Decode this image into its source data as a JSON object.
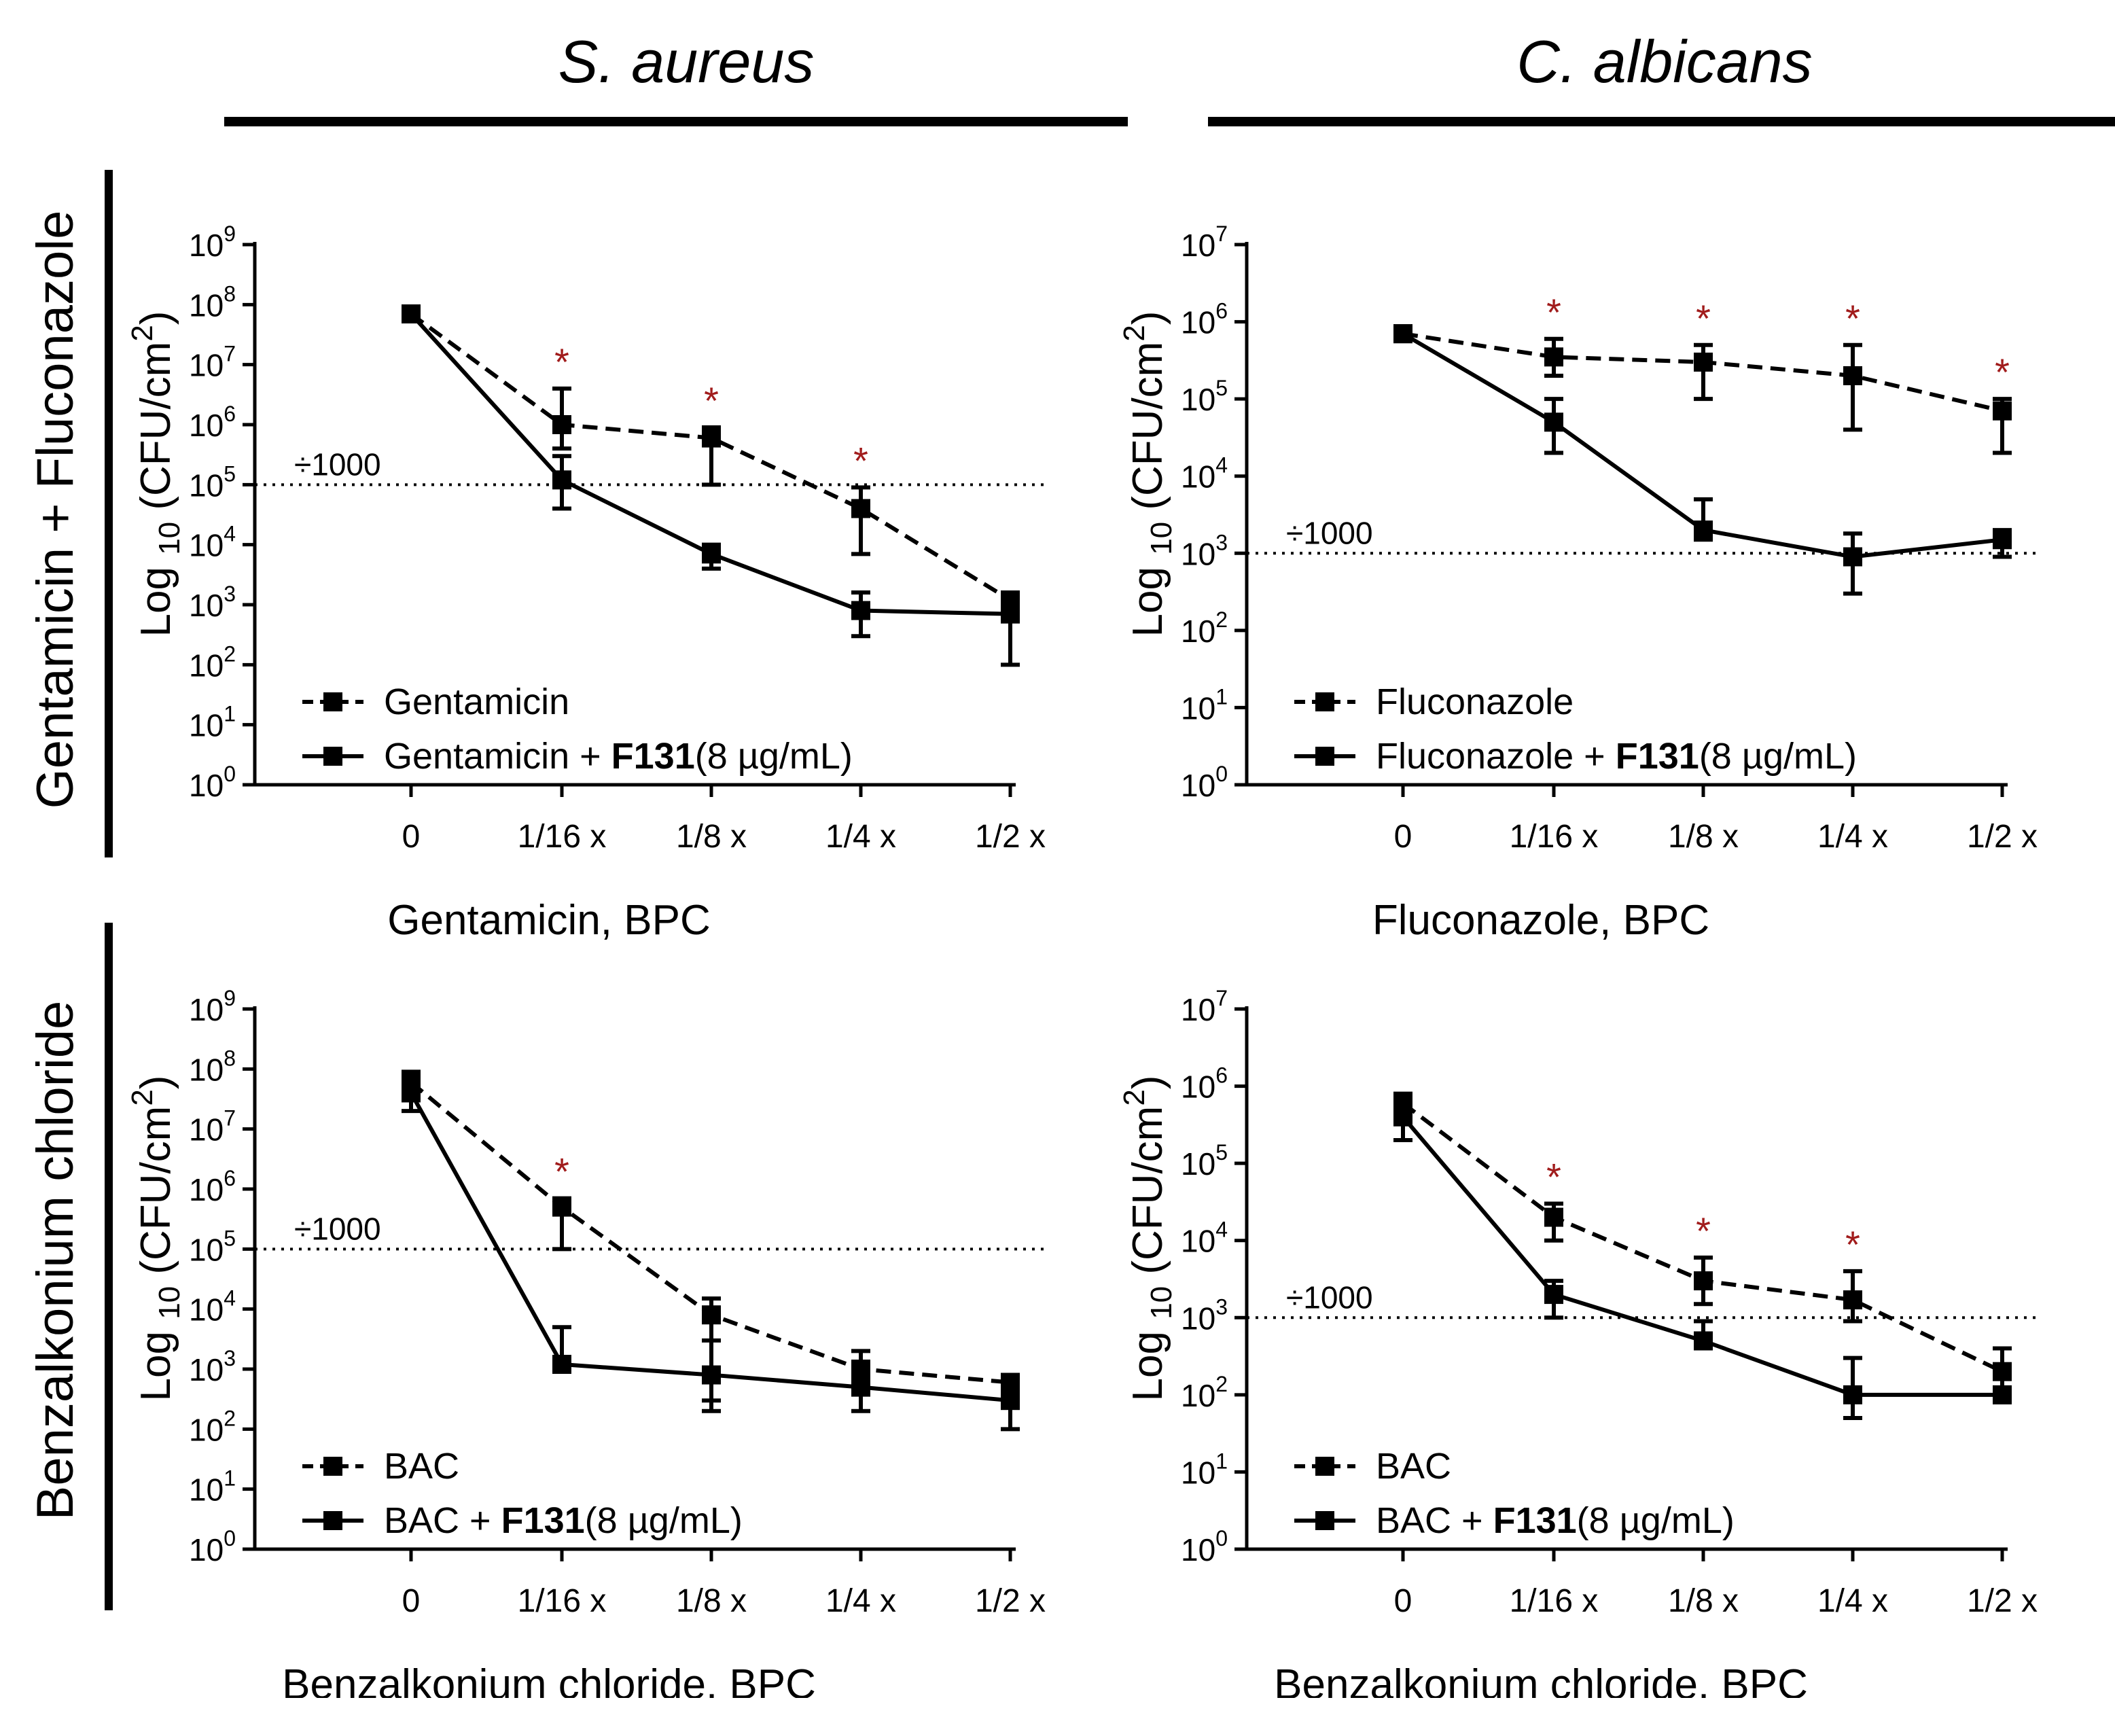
{
  "column_titles": [
    "S. aureus",
    "C. albicans"
  ],
  "row_labels": [
    "Gentamicin + Fluconazole",
    "Benzalkonium chloride"
  ],
  "colors": {
    "axis": "#000000",
    "asterisk": "#a11c1c",
    "threshold": "#000000"
  },
  "chart_data": [
    {
      "type": "line",
      "organism": "S. aureus",
      "xlabel": "Gentamicin, BPC",
      "ylabel_main": "Log",
      "ylabel_sub": "10",
      "ylabel_unit": "(CFU/cm",
      "ylabel_sup": "2",
      "ylabel_close": ")",
      "categories": [
        "0",
        "1/16 x",
        "1/8 x",
        "1/4 x",
        "1/2 x"
      ],
      "yscale": "log10",
      "ylim_exp": [
        0,
        9
      ],
      "threshold": {
        "value": 100000,
        "label": "÷1000"
      },
      "legend_position": "bottom-left",
      "series": [
        {
          "name": "Gentamicin",
          "style": "dashed",
          "values": [
            70000000,
            1000000,
            600000,
            40000,
            1200
          ],
          "err_low": [
            70000000,
            400000,
            100000,
            7000,
            900
          ],
          "err_high": [
            70000000,
            4000000,
            900000,
            90000,
            1500
          ]
        },
        {
          "name": "Gentamicin + ",
          "name_bold": "F131",
          "name_tail": "(8 µg/mL)",
          "style": "solid",
          "values": [
            70000000,
            120000,
            7000,
            800,
            700
          ],
          "err_low": [
            70000000,
            40000,
            4000,
            300,
            100
          ],
          "err_high": [
            70000000,
            300000,
            10000,
            1600,
            1500
          ]
        }
      ],
      "asterisks": [
        1,
        2,
        3
      ],
      "asterisk_symbol": "*"
    },
    {
      "type": "line",
      "organism": "C. albicans",
      "xlabel": "Fluconazole, BPC",
      "ylabel_main": "Log",
      "ylabel_sub": "10",
      "ylabel_unit": "(CFU/cm",
      "ylabel_sup": "2",
      "ylabel_close": ")",
      "categories": [
        "0",
        "1/16 x",
        "1/8 x",
        "1/4 x",
        "1/2 x"
      ],
      "yscale": "log10",
      "ylim_exp": [
        0,
        7
      ],
      "threshold": {
        "value": 1000,
        "label": "÷1000"
      },
      "legend_position": "bottom-left",
      "series": [
        {
          "name": "Fluconazole",
          "style": "dashed",
          "values": [
            700000,
            350000,
            300000,
            200000,
            70000
          ],
          "err_low": [
            700000,
            200000,
            100000,
            40000,
            20000
          ],
          "err_high": [
            700000,
            600000,
            500000,
            500000,
            100000
          ]
        },
        {
          "name": "Fluconazole + ",
          "name_bold": "F131",
          "name_tail": "(8 µg/mL)",
          "style": "solid",
          "values": [
            700000,
            50000,
            2000,
            900,
            1500
          ],
          "err_low": [
            700000,
            20000,
            1500,
            300,
            900
          ],
          "err_high": [
            700000,
            100000,
            5000,
            1800,
            2000
          ]
        }
      ],
      "asterisks": [
        1,
        2,
        3,
        4
      ],
      "asterisk_symbol": "*"
    },
    {
      "type": "line",
      "organism": "S. aureus",
      "xlabel": "Benzalkonium chloride, BPC",
      "ylabel_main": "Log",
      "ylabel_sub": "10",
      "ylabel_unit": "(CFU/cm",
      "ylabel_sup": "2",
      "ylabel_close": ")",
      "categories": [
        "0",
        "1/16 x",
        "1/8 x",
        "1/4 x",
        "1/2 x"
      ],
      "yscale": "log10",
      "ylim_exp": [
        0,
        9
      ],
      "threshold": {
        "value": 100000,
        "label": "÷1000"
      },
      "legend_position": "bottom-left",
      "series": [
        {
          "name": "BAC",
          "style": "dashed",
          "values": [
            60000000,
            500000,
            8000,
            1000,
            600
          ],
          "err_low": [
            30000000,
            100000,
            300,
            500,
            300
          ],
          "err_high": [
            90000000,
            700000,
            15000,
            2000,
            800
          ]
        },
        {
          "name": "BAC + ",
          "name_bold": "F131",
          "name_tail": "(8 µg/mL)",
          "style": "solid",
          "values": [
            40000000,
            1200,
            800,
            500,
            300
          ],
          "err_low": [
            20000000,
            900,
            200,
            200,
            100
          ],
          "err_high": [
            60000000,
            5000,
            3000,
            900,
            500
          ]
        }
      ],
      "asterisks": [
        1
      ],
      "asterisk_symbol": "*"
    },
    {
      "type": "line",
      "organism": "C. albicans",
      "xlabel": "Benzalkonium chloride, BPC",
      "ylabel_main": "Log",
      "ylabel_sub": "10",
      "ylabel_unit": "(CFU/cm",
      "ylabel_sup": "2",
      "ylabel_close": ")",
      "categories": [
        "0",
        "1/16 x",
        "1/8 x",
        "1/4 x",
        "1/2 x"
      ],
      "yscale": "log10",
      "ylim_exp": [
        0,
        7
      ],
      "threshold": {
        "value": 1000,
        "label": "÷1000"
      },
      "legend_position": "bottom-left",
      "series": [
        {
          "name": "BAC",
          "style": "dashed",
          "values": [
            600000,
            20000,
            3000,
            1700,
            200
          ],
          "err_low": [
            400000,
            10000,
            1500,
            900,
            100
          ],
          "err_high": [
            800000,
            30000,
            6000,
            4000,
            400
          ]
        },
        {
          "name": "BAC + ",
          "name_bold": "F131",
          "name_tail": "(8 µg/mL)",
          "style": "solid",
          "values": [
            400000,
            2000,
            500,
            100,
            100
          ],
          "err_low": [
            200000,
            1000,
            400,
            50,
            80
          ],
          "err_high": [
            600000,
            3000,
            900,
            300,
            120
          ]
        }
      ],
      "asterisks": [
        1,
        2,
        3
      ],
      "asterisk_symbol": "*"
    }
  ]
}
